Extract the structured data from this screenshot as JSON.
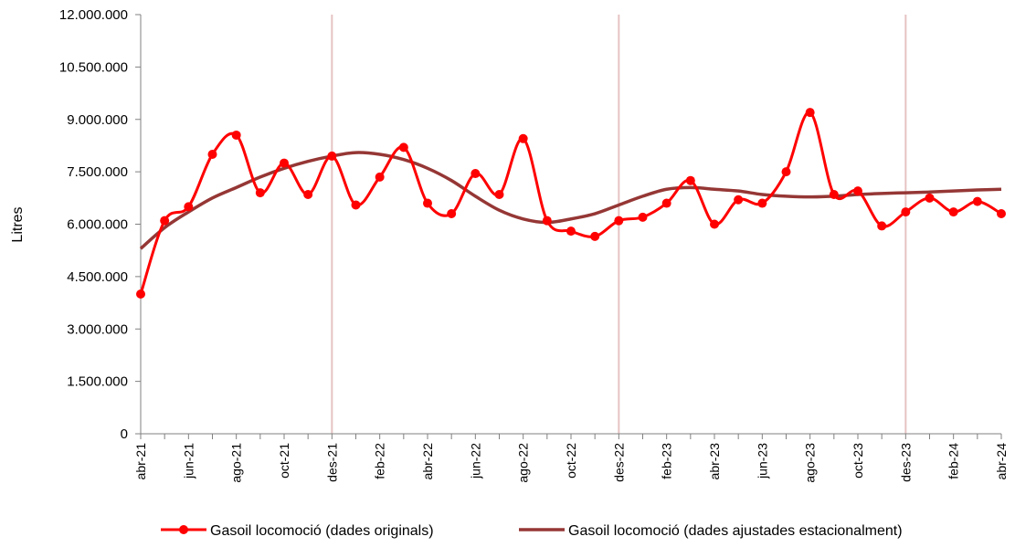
{
  "chart_data": {
    "type": "line",
    "ylabel": "Litres",
    "ylim": [
      0,
      12000000
    ],
    "y_ticks": [
      0,
      1500000,
      3000000,
      4500000,
      6000000,
      7500000,
      9000000,
      10500000,
      12000000
    ],
    "y_tick_labels": [
      "0",
      "1.500.000",
      "3.000.000",
      "4.500.000",
      "6.000.000",
      "7.500.000",
      "9.000.000",
      "10.500.000",
      "12.000.000"
    ],
    "x": [
      "abr-21",
      "mai-21",
      "jun-21",
      "jul-21",
      "ago-21",
      "set-21",
      "oct-21",
      "nov-21",
      "des-21",
      "gen-22",
      "feb-22",
      "mar-22",
      "abr-22",
      "mai-22",
      "jun-22",
      "jul-22",
      "ago-22",
      "set-22",
      "oct-22",
      "nov-22",
      "des-22",
      "gen-23",
      "feb-23",
      "mar-23",
      "abr-23",
      "mai-23",
      "jun-23",
      "jul-23",
      "ago-23",
      "set-23",
      "oct-23",
      "nov-23",
      "des-23",
      "gen-24",
      "feb-24",
      "mar-24",
      "abr-24"
    ],
    "x_tick_labels": [
      "abr-21",
      "jun-21",
      "ago-21",
      "oct-21",
      "des-21",
      "feb-22",
      "abr-22",
      "jun-22",
      "ago-22",
      "oct-22",
      "des-22",
      "feb-23",
      "abr-23",
      "jun-23",
      "ago-23",
      "oct-23",
      "des-23",
      "feb-24",
      "abr-24"
    ],
    "vertical_markers": [
      "des-21",
      "des-22",
      "des-23"
    ],
    "series": [
      {
        "name": "Gasoil locomoció (dades originals)",
        "color": "#ff0000",
        "markers": true,
        "values": [
          4000000,
          6100000,
          6500000,
          8000000,
          8550000,
          6900000,
          7750000,
          6850000,
          7950000,
          6550000,
          7350000,
          8200000,
          6600000,
          6300000,
          7450000,
          6850000,
          8450000,
          6100000,
          5800000,
          5650000,
          6100000,
          6200000,
          6600000,
          7250000,
          6000000,
          6700000,
          6600000,
          7500000,
          9200000,
          6850000,
          6950000,
          5950000,
          6350000,
          6750000,
          6350000,
          6650000,
          6300000
        ]
      },
      {
        "name": "Gasoil locomoció (dades ajustades estacionalment)",
        "color": "#953735",
        "markers": false,
        "values": [
          5300000,
          5900000,
          6350000,
          6750000,
          7050000,
          7350000,
          7600000,
          7800000,
          7950000,
          8050000,
          8000000,
          7850000,
          7600000,
          7250000,
          6800000,
          6400000,
          6150000,
          6050000,
          6150000,
          6300000,
          6550000,
          6800000,
          7000000,
          7050000,
          7000000,
          6950000,
          6850000,
          6800000,
          6780000,
          6800000,
          6850000,
          6880000,
          6900000,
          6920000,
          6950000,
          6980000,
          7000000
        ]
      }
    ],
    "legend_position": "bottom",
    "grid": false
  }
}
